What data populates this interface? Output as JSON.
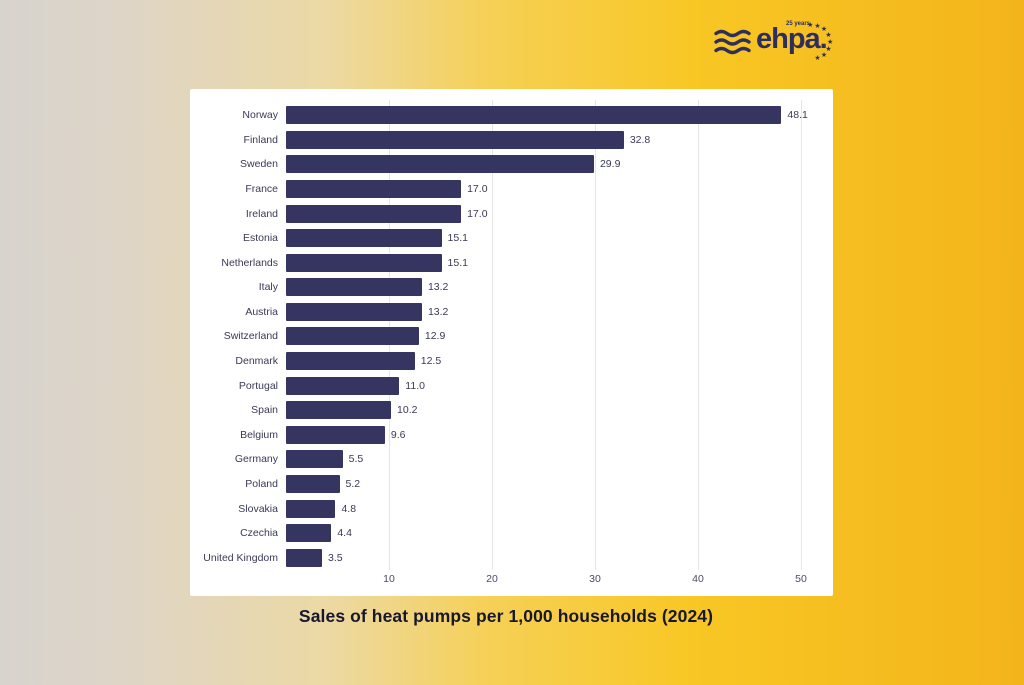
{
  "logo": {
    "name": "ehpa.",
    "badge": "25 years",
    "waves_icon": "waves-icon",
    "stars_count": 8
  },
  "colors": {
    "bar": "#363461",
    "logo": "#2d2e5e",
    "title": "#17172e",
    "text": "#3a3a55",
    "tick": "#4c4c63",
    "grid": "#e5e5ea",
    "card": "#ffffff",
    "bg_left": "#d7d3cd",
    "bg_right": "#f3b41b"
  },
  "chart_data": {
    "type": "bar",
    "orientation": "horizontal",
    "title": "Sales of heat pumps per 1,000 households (2024)",
    "xlabel": "",
    "ylabel": "",
    "xlim": [
      0,
      52
    ],
    "xticks": [
      10,
      20,
      30,
      40,
      50
    ],
    "grid": "vertical",
    "legend": "none",
    "categories": [
      "Norway",
      "Finland",
      "Sweden",
      "France",
      "Ireland",
      "Estonia",
      "Netherlands",
      "Italy",
      "Austria",
      "Switzerland",
      "Denmark",
      "Portugal",
      "Spain",
      "Belgium",
      "Germany",
      "Poland",
      "Slovakia",
      "Czechia",
      "United Kingdom"
    ],
    "values": [
      48.1,
      32.8,
      29.9,
      17.0,
      17.0,
      15.1,
      15.1,
      13.2,
      13.2,
      12.9,
      12.5,
      11.0,
      10.2,
      9.6,
      5.5,
      5.2,
      4.8,
      4.4,
      3.5
    ],
    "value_labels": [
      "48.1",
      "32.8",
      "29.9",
      "17.0",
      "17.0",
      "15.1",
      "15.1",
      "13.2",
      "13.2",
      "12.9",
      "12.5",
      "11.0",
      "10.2",
      "9.6",
      "5.5",
      "5.2",
      "4.8",
      "4.4",
      "3.5"
    ]
  }
}
